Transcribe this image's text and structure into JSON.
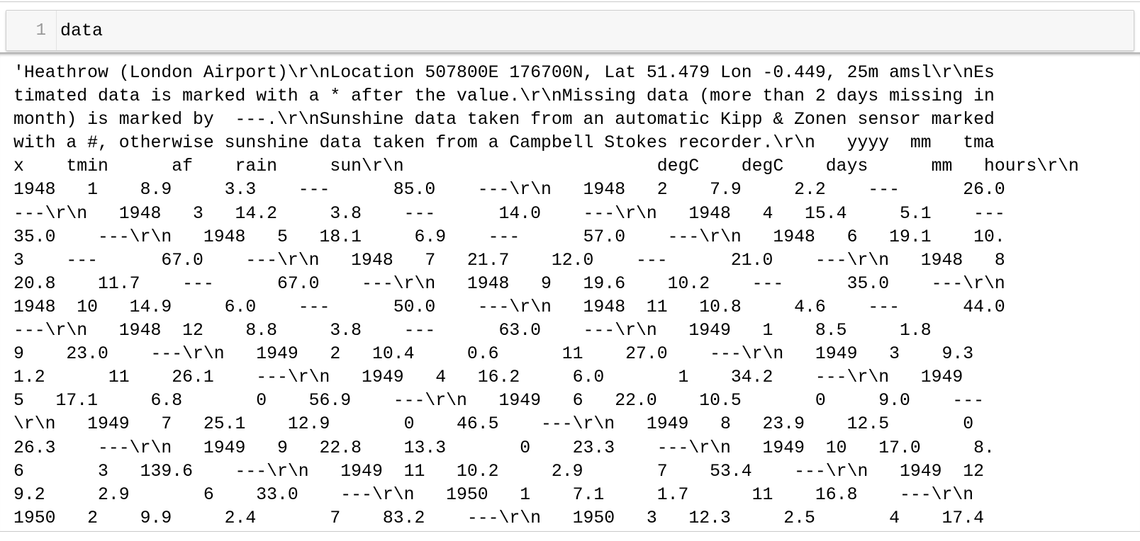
{
  "input_cell": {
    "line_number": "1",
    "code": "data"
  },
  "output_cell": {
    "text_lines": [
      "'Heathrow (London Airport)\\r\\nLocation 507800E 176700N, Lat 51.479 Lon -0.449, 25m amsl\\r\\nEs",
      "timated data is marked with a * after the value.\\r\\nMissing data (more than 2 days missing in",
      "month) is marked by  ---.\\r\\nSunshine data taken from an automatic Kipp & Zonen sensor marked",
      "with a #, otherwise sunshine data taken from a Campbell Stokes recorder.\\r\\n   yyyy  mm   tma",
      "x    tmin      af    rain     sun\\r\\n                        degC    degC    days      mm   hours\\r\\n",
      "1948   1    8.9     3.3    ---      85.0    ---\\r\\n   1948   2    7.9     2.2    ---      26.0",
      "---\\r\\n   1948   3   14.2     3.8    ---      14.0    ---\\r\\n   1948   4   15.4     5.1    ---",
      "35.0    ---\\r\\n   1948   5   18.1     6.9    ---      57.0    ---\\r\\n   1948   6   19.1    10.",
      "3    ---      67.0    ---\\r\\n   1948   7   21.7    12.0    ---      21.0    ---\\r\\n   1948   8",
      "20.8    11.7    ---      67.0    ---\\r\\n   1948   9   19.6    10.2    ---      35.0    ---\\r\\n",
      "1948  10   14.9     6.0    ---      50.0    ---\\r\\n   1948  11   10.8     4.6    ---      44.0",
      "---\\r\\n   1948  12    8.8     3.8    ---      63.0    ---\\r\\n   1949   1    8.5     1.8",
      "9    23.0    ---\\r\\n   1949   2   10.4     0.6      11    27.0    ---\\r\\n   1949   3    9.3",
      "1.2      11    26.1    ---\\r\\n   1949   4   16.2     6.0       1    34.2    ---\\r\\n   1949",
      "5   17.1     6.8       0    56.9    ---\\r\\n   1949   6   22.0    10.5       0     9.0    ---",
      "\\r\\n   1949   7   25.1    12.9       0    46.5    ---\\r\\n   1949   8   23.9    12.5       0",
      "26.3    ---\\r\\n   1949   9   22.8    13.3       0    23.3    ---\\r\\n   1949  10   17.0     8.",
      "6       3   139.6    ---\\r\\n   1949  11   10.2     2.9       7    53.4    ---\\r\\n   1949  12",
      "9.2     2.9       6    33.0    ---\\r\\n   1950   1    7.1     1.7      11    16.8    ---\\r\\n",
      "1950   2    9.9     2.4       7    83.2    ---\\r\\n   1950   3   12.3     2.5       4    17.4"
    ]
  }
}
